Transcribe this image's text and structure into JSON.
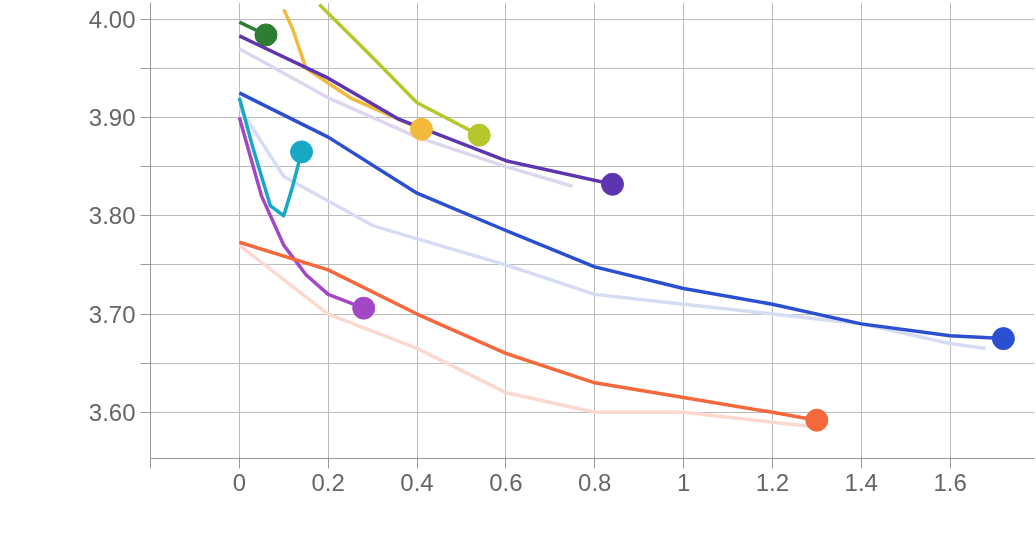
{
  "chart_data": {
    "type": "line",
    "xlim": [
      -0.2,
      1.79
    ],
    "ylim": [
      3.553,
      4.017
    ],
    "xticks": [
      {
        "value": -0.2,
        "label": null
      },
      0,
      0.2,
      0.4,
      0.6,
      0.8,
      1,
      1.2,
      1.4,
      1.6
    ],
    "yticks": [
      {
        "value": 3.6,
        "label": "3.60"
      },
      {
        "value": 3.65,
        "label": null
      },
      {
        "value": 3.7,
        "label": "3.70"
      },
      {
        "value": 3.75,
        "label": null
      },
      {
        "value": 3.8,
        "label": "3.80"
      },
      {
        "value": 3.85,
        "label": null
      },
      {
        "value": 3.9,
        "label": "3.90"
      },
      {
        "value": 3.95,
        "label": null
      },
      {
        "value": 4.0,
        "label": "4.00"
      }
    ],
    "grid": true,
    "line_style": "solid",
    "series": [
      {
        "color": "#d5dcf3",
        "x": [
          0,
          0.1,
          0.3,
          0.6,
          0.8,
          1.0,
          1.2,
          1.4,
          1.6,
          1.68
        ],
        "values": [
          3.91,
          3.84,
          3.79,
          3.75,
          3.72,
          3.71,
          3.7,
          3.69,
          3.67,
          3.665
        ]
      },
      {
        "color": "#fbd9cf",
        "x": [
          0,
          0.2,
          0.4,
          0.6,
          0.8,
          1.0,
          1.2,
          1.3
        ],
        "values": [
          3.77,
          3.7,
          3.665,
          3.62,
          3.6,
          3.6,
          3.59,
          3.585
        ]
      },
      {
        "color": "#ddd6ee",
        "x": [
          0,
          0.2,
          0.4,
          0.6,
          0.75
        ],
        "values": [
          3.97,
          3.92,
          3.88,
          3.85,
          3.83
        ]
      },
      {
        "color": "#2e7d32",
        "x": [
          0,
          0.06
        ],
        "values": [
          3.997,
          3.984
        ]
      },
      {
        "color": "#b5c72a",
        "x": [
          0.18,
          0.3,
          0.4,
          0.54
        ],
        "values": [
          4.015,
          3.961,
          3.915,
          3.882
        ]
      },
      {
        "color": "#f2b93b",
        "x": [
          0.1,
          0.12,
          0.15,
          0.25,
          0.41
        ],
        "values": [
          4.01,
          3.99,
          3.95,
          3.92,
          3.888
        ]
      },
      {
        "color": "#5e35b1",
        "x": [
          0,
          0.2,
          0.36,
          0.6,
          0.84
        ],
        "values": [
          3.983,
          3.94,
          3.898,
          3.856,
          3.832
        ]
      },
      {
        "color": "#2a4fd1",
        "x": [
          0,
          0.2,
          0.4,
          0.6,
          0.8,
          1.0,
          1.2,
          1.4,
          1.6,
          1.72
        ],
        "values": [
          3.925,
          3.88,
          3.823,
          3.785,
          3.748,
          3.726,
          3.71,
          3.69,
          3.678,
          3.675
        ]
      },
      {
        "color": "#17a9c4",
        "x": [
          0,
          0.03,
          0.07,
          0.1,
          0.12,
          0.14
        ],
        "values": [
          3.92,
          3.87,
          3.81,
          3.8,
          3.83,
          3.865
        ]
      },
      {
        "color": "#a447c6",
        "x": [
          0,
          0.05,
          0.1,
          0.15,
          0.2,
          0.28
        ],
        "values": [
          3.9,
          3.82,
          3.77,
          3.74,
          3.72,
          3.706
        ]
      },
      {
        "color": "#f4683c",
        "x": [
          0,
          0.2,
          0.4,
          0.6,
          0.8,
          1.0,
          1.2,
          1.3
        ],
        "values": [
          3.773,
          3.745,
          3.7,
          3.66,
          3.63,
          3.615,
          3.6,
          3.592
        ]
      },
      {
        "type": "scatter",
        "x": [
          0.06,
          0.54,
          0.41,
          0.84,
          1.72,
          0.14,
          0.28,
          1.3
        ],
        "values": [
          3.984,
          3.882,
          3.888,
          3.832,
          3.675,
          3.865,
          3.706,
          3.592
        ],
        "colors": [
          "#2e7d32",
          "#b5c72a",
          "#f2b93b",
          "#5e35b1",
          "#2a4fd1",
          "#17a9c4",
          "#a447c6",
          "#f4683c"
        ],
        "marker": "circle"
      }
    ]
  }
}
